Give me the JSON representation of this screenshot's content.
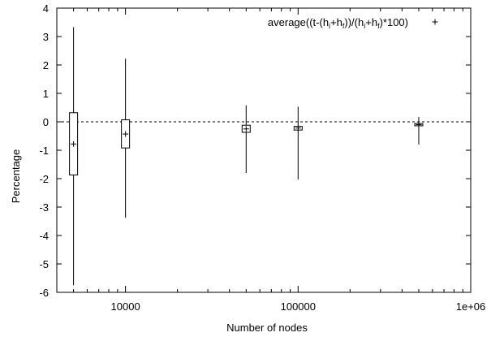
{
  "chart_data": {
    "type": "box",
    "title": "",
    "xlabel": "Number of nodes",
    "ylabel": "Percentage",
    "x_scale": "log",
    "xlim": [
      4000,
      1000000
    ],
    "ylim": [
      -6,
      4
    ],
    "x_ticks": [
      {
        "value": 10000,
        "label": "10000"
      },
      {
        "value": 100000,
        "label": "100000"
      },
      {
        "value": 1000000,
        "label": "1e+06"
      }
    ],
    "y_ticks": [
      {
        "value": 4,
        "label": "4"
      },
      {
        "value": 3,
        "label": "3"
      },
      {
        "value": 2,
        "label": "2"
      },
      {
        "value": 1,
        "label": "1"
      },
      {
        "value": 0,
        "label": "0"
      },
      {
        "value": -1,
        "label": "-1"
      },
      {
        "value": -2,
        "label": "-2"
      },
      {
        "value": -3,
        "label": "-3"
      },
      {
        "value": -4,
        "label": "-4"
      },
      {
        "value": -5,
        "label": "-5"
      },
      {
        "value": -6,
        "label": "-6"
      }
    ],
    "reference_line": {
      "y": 0,
      "style": "dashed"
    },
    "legend": {
      "position": "top-right",
      "marker": "+",
      "label_parts": [
        "average((t-(h",
        "i",
        "+h",
        "f",
        "))/(h",
        "i",
        "+h",
        "f",
        ")*100)"
      ]
    },
    "boxes": [
      {
        "x": 5000,
        "min": -5.75,
        "q1": -1.87,
        "q3": 0.32,
        "max": 3.33,
        "mean": -0.78
      },
      {
        "x": 10000,
        "min": -3.38,
        "q1": -0.92,
        "q3": 0.07,
        "max": 2.22,
        "mean": -0.43
      },
      {
        "x": 50000,
        "min": -1.8,
        "q1": -0.37,
        "q3": -0.12,
        "max": 0.58,
        "mean": -0.25
      },
      {
        "x": 100000,
        "min": -2.03,
        "q1": -0.29,
        "q3": -0.16,
        "max": 0.53,
        "mean": -0.22
      },
      {
        "x": 500000,
        "min": -0.8,
        "q1": -0.14,
        "q3": -0.06,
        "max": 0.17,
        "mean": -0.1
      }
    ]
  }
}
